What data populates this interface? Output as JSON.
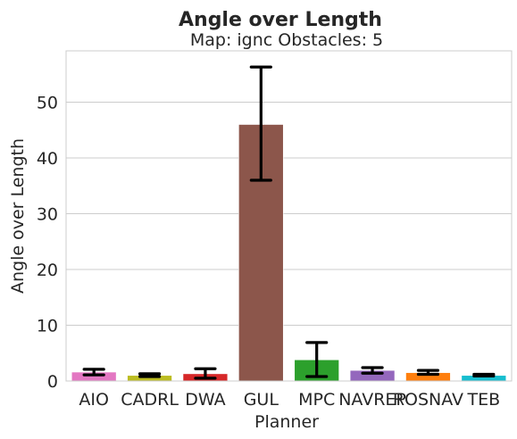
{
  "chart_data": {
    "type": "bar",
    "title": "Angle over Length",
    "subtitle": "Map: ignc Obstacles: 5",
    "xlabel": "Planner",
    "ylabel": "Angle over Length",
    "categories": [
      "AIO",
      "CADRL",
      "DWA",
      "GUL",
      "MPC",
      "NAVREP",
      "ROSNAV",
      "TEB"
    ],
    "values": [
      1.6,
      1.0,
      1.3,
      46.0,
      3.8,
      1.9,
      1.5,
      1.0
    ],
    "error_low": [
      1.1,
      0.8,
      0.5,
      36.0,
      0.8,
      1.4,
      1.2,
      0.9
    ],
    "error_high": [
      2.1,
      1.3,
      2.2,
      56.3,
      6.9,
      2.4,
      1.9,
      1.2
    ],
    "colors": [
      "#e377c2",
      "#bcbd22",
      "#d62728",
      "#8c564b",
      "#2ca02c",
      "#9467bd",
      "#ff7f0e",
      "#17becf"
    ],
    "yticks": [
      0,
      10,
      20,
      30,
      40,
      50
    ],
    "ylim": [
      0,
      59.2
    ],
    "grid": true
  }
}
